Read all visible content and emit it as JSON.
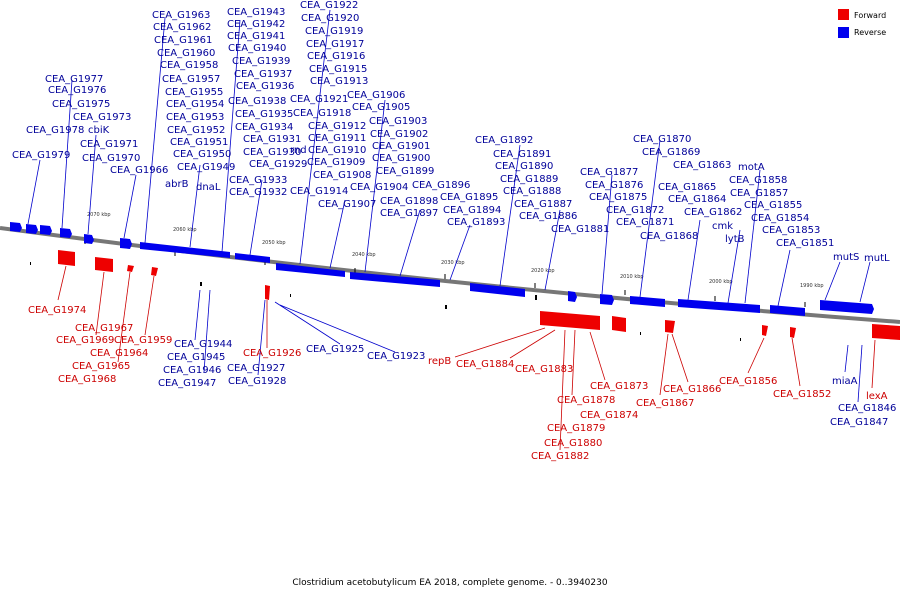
{
  "caption": "Clostridium acetobutylicum EA 2018, complete genome. - 0..3940230",
  "legend": [
    {
      "label": "Forward",
      "color": "#ee0000"
    },
    {
      "label": "Reverse",
      "color": "#0000ee"
    }
  ],
  "colors": {
    "forward": "#ee0000",
    "reverse": "#0000ee",
    "backbone": "#777777"
  },
  "ticks": [
    "2070 kbp",
    "2060 kbp",
    "2050 kbp",
    "2040 kbp",
    "2030 kbp",
    "2020 kbp",
    "2010 kbp",
    "2000 kbp",
    "1990 kbp"
  ],
  "reverse_labels": [
    "CEA_G1977",
    "CEA_G1976",
    "CEA_G1975",
    "CEA_G1973",
    "CEA_G1978",
    "cbiK",
    "CEA_G1971",
    "CEA_G1979",
    "CEA_G1970",
    "CEA_G1966",
    "CEA_G1963",
    "CEA_G1962",
    "CEA_G1961",
    "CEA_G1960",
    "CEA_G1958",
    "CEA_G1957",
    "CEA_G1955",
    "CEA_G1954",
    "CEA_G1953",
    "CEA_G1952",
    "CEA_G1951",
    "CEA_G1950",
    "CEA_G1949",
    "abrB",
    "dnaL",
    "CEA_G1943",
    "CEA_G1942",
    "CEA_G1941",
    "CEA_G1940",
    "CEA_G1939",
    "CEA_G1937",
    "CEA_G1936",
    "CEA_G1938",
    "CEA_G1935",
    "CEA_G1934",
    "CEA_G1931",
    "CEA_G1930",
    "CEA_G1929",
    "CEA_G1933",
    "CEA_G1932",
    "CEA_G1922",
    "CEA_G1920",
    "CEA_G1919",
    "CEA_G1917",
    "CEA_G1916",
    "CEA_G1915",
    "CEA_G1913",
    "CEA_G1921",
    "CEA_G1918",
    "CEA_G1912",
    "CEA_G1911",
    "CEA_G1910",
    "rnd",
    "CEA_G1909",
    "CEA_G1908",
    "CEA_G1914",
    "CEA_G1907",
    "CEA_G1906",
    "CEA_G1905",
    "CEA_G1903",
    "CEA_G1902",
    "CEA_G1901",
    "CEA_G1900",
    "CEA_G1899",
    "CEA_G1904",
    "CEA_G1898",
    "CEA_G1897",
    "CEA_G1896",
    "CEA_G1895",
    "CEA_G1894",
    "CEA_G1893",
    "CEA_G1892",
    "CEA_G1891",
    "CEA_G1890",
    "CEA_G1889",
    "CEA_G1888",
    "CEA_G1887",
    "CEA_G1886",
    "CEA_G1881",
    "CEA_G1877",
    "CEA_G1876",
    "CEA_G1875",
    "CEA_G1872",
    "CEA_G1871",
    "CEA_G1868",
    "CEA_G1870",
    "CEA_G1869",
    "CEA_G1863",
    "motA",
    "CEA_G1865",
    "CEA_G1864",
    "CEA_G1862",
    "CEA_G1858",
    "CEA_G1857",
    "CEA_G1855",
    "CEA_G1854",
    "cmk",
    "lytB",
    "CEA_G1853",
    "CEA_G1851",
    "mutS",
    "mutL",
    "CEA_G1944",
    "CEA_G1945",
    "CEA_G1946",
    "CEA_G1947",
    "CEA_G1927",
    "CEA_G1928",
    "CEA_G1925",
    "CEA_G1923",
    "miaA",
    "CEA_G1846",
    "CEA_G1847"
  ],
  "forward_labels": [
    "CEA_G1974",
    "CEA_G1967",
    "CEA_G1969",
    "CEA_G1964",
    "CEA_G1959",
    "CEA_G1965",
    "CEA_G1968",
    "CEA_G1926",
    "repB",
    "CEA_G1884",
    "CEA_G1883",
    "CEA_G1873",
    "CEA_G1878",
    "CEA_G1874",
    "CEA_G1879",
    "CEA_G1880",
    "CEA_G1882",
    "CEA_G1866",
    "CEA_G1867",
    "CEA_G1856",
    "CEA_G1852",
    "lexA"
  ]
}
